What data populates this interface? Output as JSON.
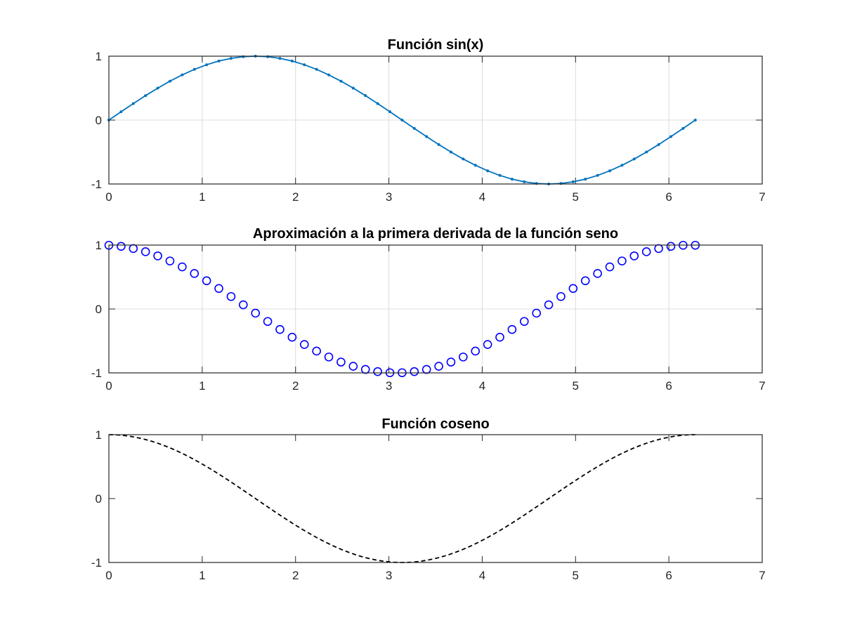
{
  "chart_data": [
    {
      "type": "line",
      "title": "Función sin(x)",
      "xlabel": "",
      "ylabel": "",
      "xlim": [
        0,
        7
      ],
      "ylim": [
        -1,
        1
      ],
      "xticks": [
        0,
        1,
        2,
        3,
        4,
        5,
        6,
        7
      ],
      "yticks": [
        -1,
        0,
        1
      ],
      "xtick_labels": [
        "0",
        "1",
        "2",
        "3",
        "4",
        "5",
        "6",
        "7"
      ],
      "ytick_labels": [
        "-1",
        "0",
        "1"
      ],
      "grid": true,
      "series": [
        {
          "function": "sin",
          "x_start": 0,
          "x_end": 6.2832,
          "n_points": 49,
          "color": "#0072BD",
          "line_style": "solid",
          "marker": "dot"
        }
      ]
    },
    {
      "type": "scatter",
      "title": "Aproximación a la primera derivada de la función seno",
      "xlabel": "",
      "ylabel": "",
      "xlim": [
        0,
        7
      ],
      "ylim": [
        -1,
        1
      ],
      "xticks": [
        0,
        1,
        2,
        3,
        4,
        5,
        6,
        7
      ],
      "yticks": [
        -1,
        0,
        1
      ],
      "xtick_labels": [
        "0",
        "1",
        "2",
        "3",
        "4",
        "5",
        "6",
        "7"
      ],
      "ytick_labels": [
        "-1",
        "0",
        "1"
      ],
      "grid": true,
      "series": [
        {
          "function": "forward-difference derivative of sin",
          "x_start": 0,
          "x_end": 6.2832,
          "n_points": 49,
          "color": "#0000FF",
          "line_style": "none",
          "marker": "circle"
        }
      ]
    },
    {
      "type": "line",
      "title": "Función coseno",
      "xlabel": "",
      "ylabel": "",
      "xlim": [
        0,
        7
      ],
      "ylim": [
        -1,
        1
      ],
      "xticks": [
        0,
        1,
        2,
        3,
        4,
        5,
        6,
        7
      ],
      "yticks": [
        -1,
        0,
        1
      ],
      "xtick_labels": [
        "0",
        "1",
        "2",
        "3",
        "4",
        "5",
        "6",
        "7"
      ],
      "ytick_labels": [
        "-1",
        "0",
        "1"
      ],
      "grid": false,
      "series": [
        {
          "function": "cos",
          "x_start": 0,
          "x_end": 6.2832,
          "n_points": 201,
          "color": "#000000",
          "line_style": "dashed",
          "marker": "none"
        }
      ]
    }
  ]
}
